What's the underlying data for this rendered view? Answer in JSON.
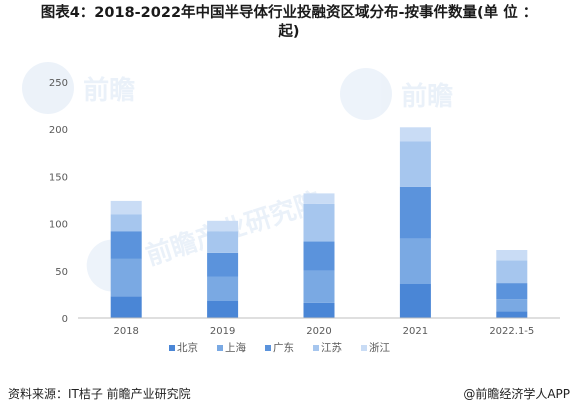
{
  "title": {
    "line1": "图表4：2018-2022年中国半导体行业投融资区域分布-按事件数量(单 位 ：",
    "line2": "起)"
  },
  "footer": {
    "source": "资料来源：IT桔子 前瞻产业研究院",
    "brand": "@前瞻经济学人APP"
  },
  "watermark": {
    "text": "前瞻产业研究院",
    "short": "前瞻"
  },
  "colors": {
    "北京": "#4a86d6",
    "上海": "#7aa9e3",
    "广东": "#5b93dc",
    "江苏": "#a6c6ee",
    "浙江": "#c9dcf5",
    "axis": "#bfbfbf",
    "text": "#595959"
  },
  "chart_data": {
    "type": "bar",
    "stacked": true,
    "categories": [
      "2018",
      "2019",
      "2020",
      "2021",
      "2022.1-5"
    ],
    "series": [
      {
        "name": "北京",
        "values": [
          23,
          18,
          16,
          36,
          7
        ]
      },
      {
        "name": "上海",
        "values": [
          40,
          26,
          34,
          48,
          13
        ]
      },
      {
        "name": "广东",
        "values": [
          29,
          25,
          31,
          55,
          17
        ]
      },
      {
        "name": "江苏",
        "values": [
          18,
          23,
          40,
          48,
          24
        ]
      },
      {
        "name": "浙江",
        "values": [
          14,
          11,
          11,
          15,
          11
        ]
      }
    ],
    "yticks": [
      0,
      50,
      100,
      150,
      200,
      250
    ],
    "ylim": [
      0,
      250
    ],
    "xlabel": "",
    "ylabel": "",
    "grid": false,
    "legend": "bottom"
  }
}
